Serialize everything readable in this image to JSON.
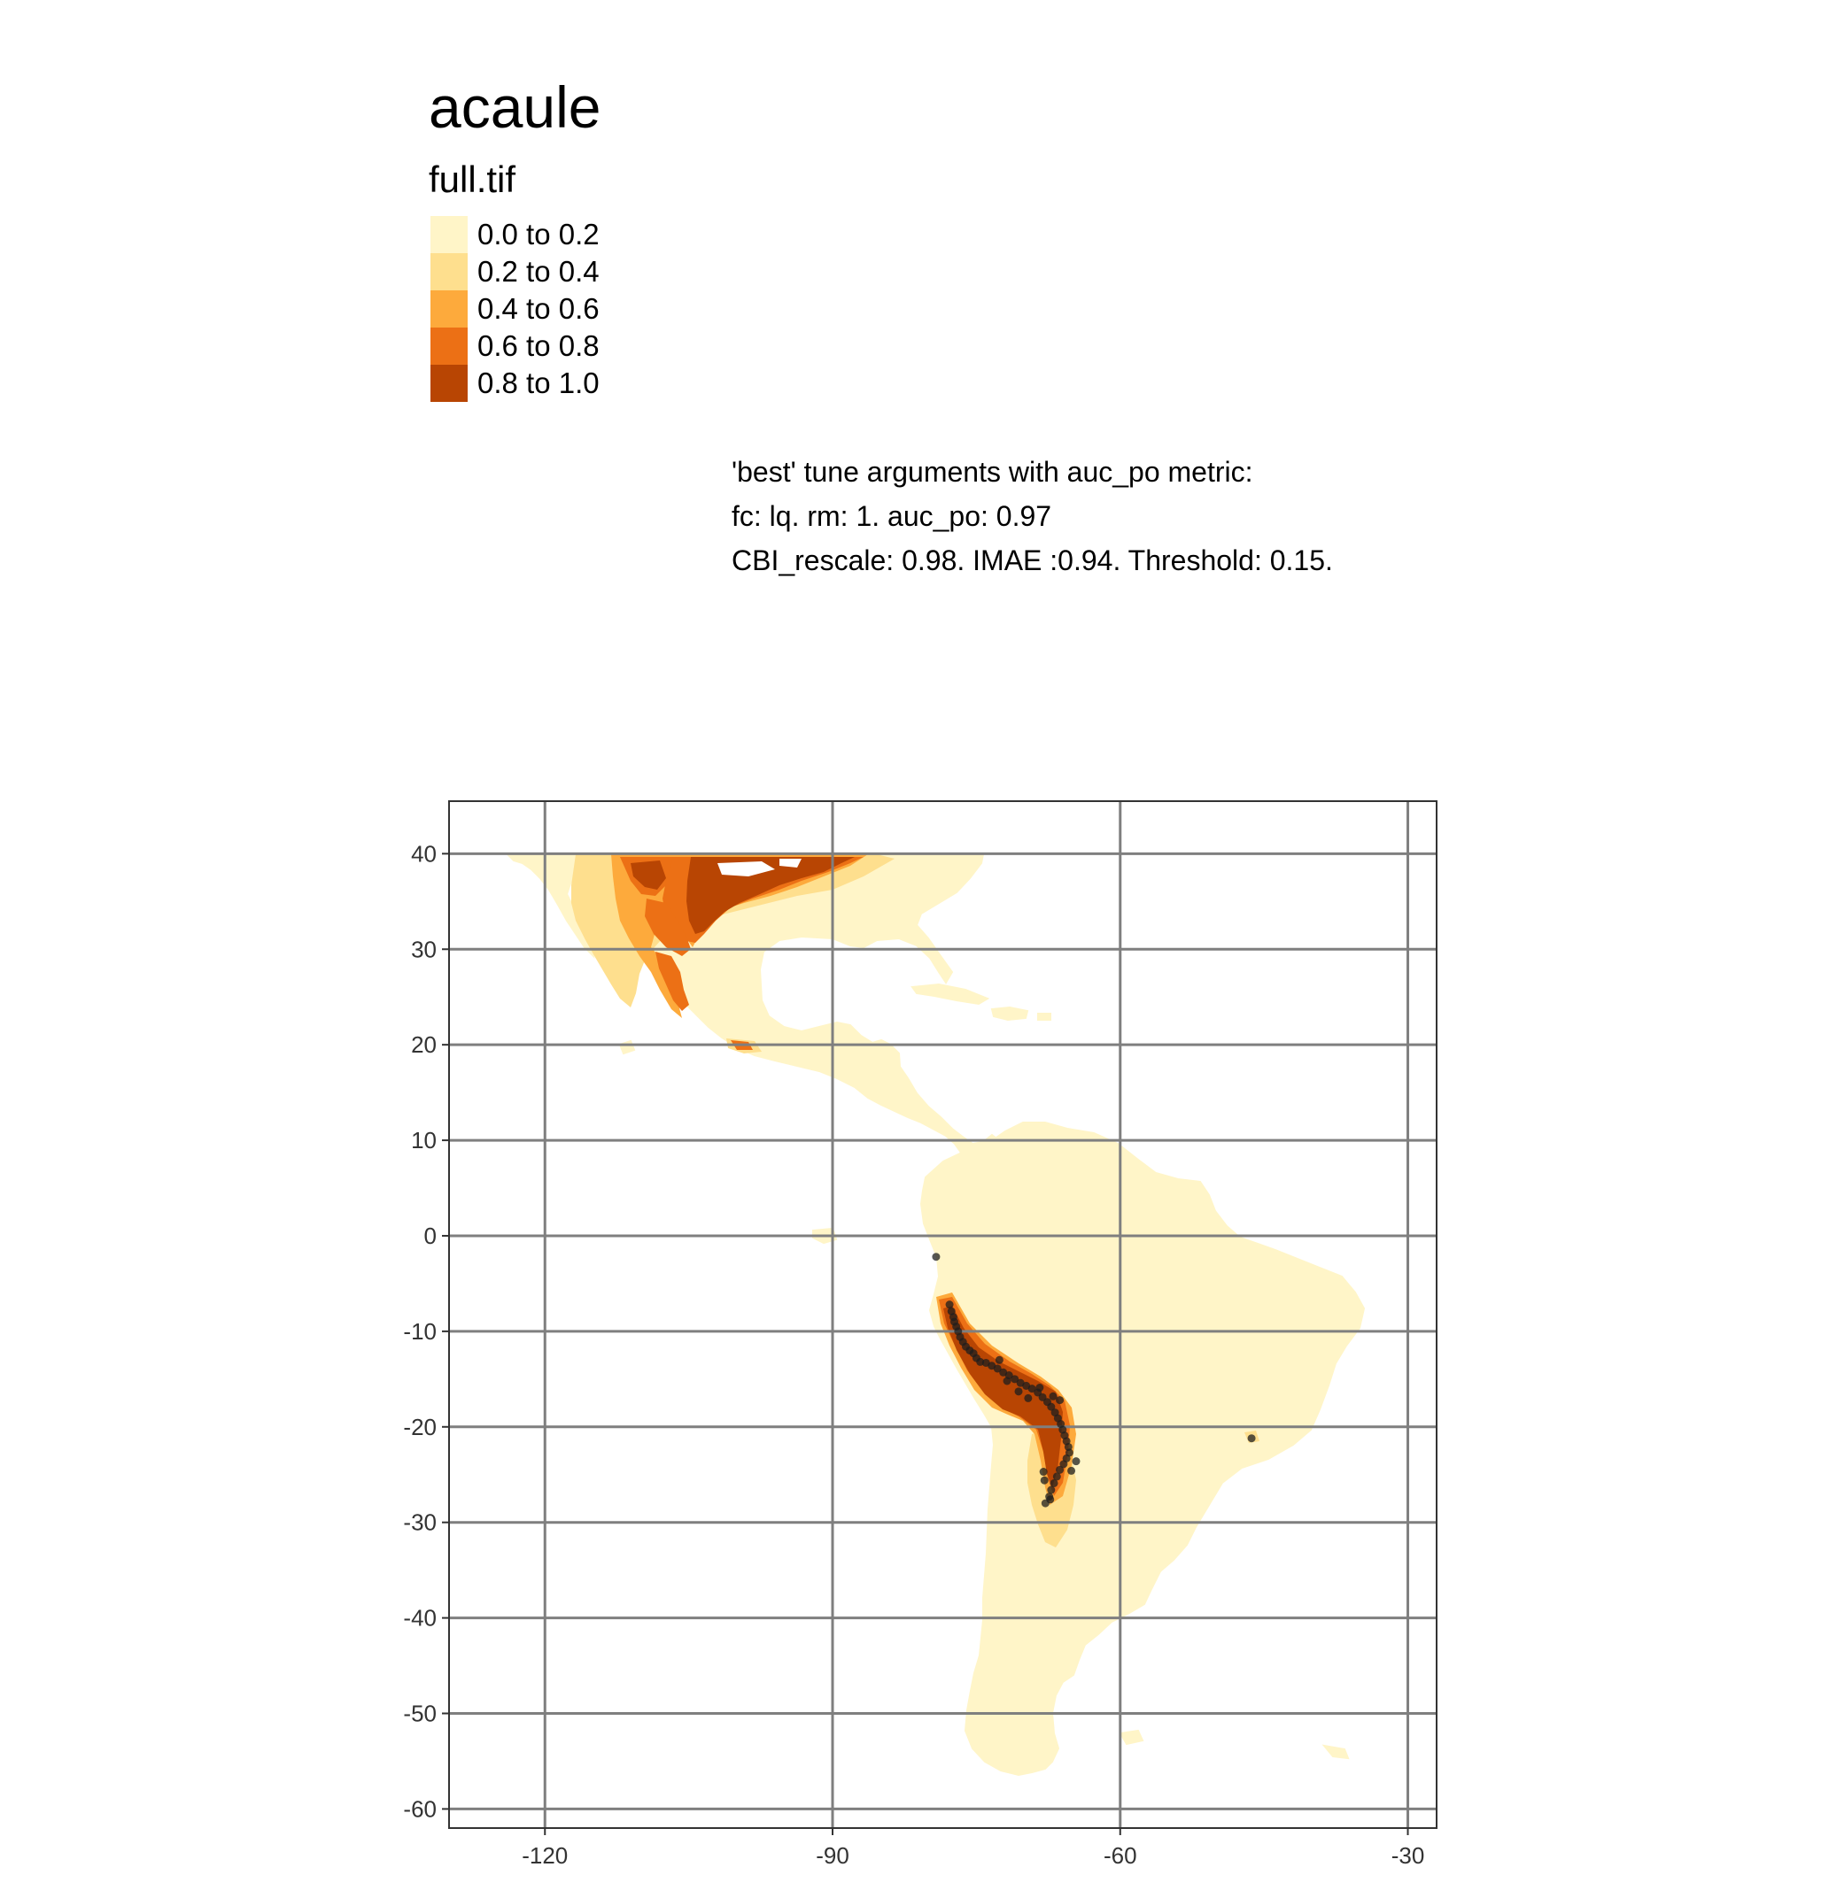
{
  "title": "acaule",
  "legend": {
    "title": "full.tif",
    "items": [
      {
        "label": "0.0 to 0.2",
        "color": "#FFF5C8"
      },
      {
        "label": "0.2 to 0.4",
        "color": "#FEDF8E"
      },
      {
        "label": "0.4 to 0.6",
        "color": "#FDAA3C"
      },
      {
        "label": "0.6 to 0.8",
        "color": "#EC7015"
      },
      {
        "label": "0.8 to 1.0",
        "color": "#B84503"
      }
    ]
  },
  "caption": [
    "'best' tune arguments with auc_po metric:",
    "fc: lq. rm: 1. auc_po: 0.97",
    "CBI_rescale: 0.98. IMAE :0.94. Threshold: 0.15."
  ],
  "map": {
    "x_ticks": [
      -120,
      -90,
      -60,
      -30
    ],
    "y_ticks": [
      40,
      30,
      20,
      10,
      0,
      -10,
      -20,
      -30,
      -40,
      -50,
      -60
    ],
    "xlim": [
      -130,
      -27
    ],
    "ylim": [
      -62,
      45.5
    ],
    "graticule_color": "#7F7F7F",
    "occurrence_color": "#1E1E1E",
    "occurrences": [
      [
        -79.2,
        -2.2
      ],
      [
        -77.8,
        -7.2
      ],
      [
        -77.6,
        -7.9
      ],
      [
        -77.4,
        -8.5
      ],
      [
        -77.3,
        -9.0
      ],
      [
        -77.1,
        -9.5
      ],
      [
        -76.9,
        -10.0
      ],
      [
        -76.7,
        -10.6
      ],
      [
        -76.4,
        -11.1
      ],
      [
        -76.1,
        -11.6
      ],
      [
        -75.7,
        -12.0
      ],
      [
        -75.3,
        -12.3
      ],
      [
        -75.0,
        -12.8
      ],
      [
        -74.6,
        -13.2
      ],
      [
        -74.0,
        -13.3
      ],
      [
        -73.4,
        -13.6
      ],
      [
        -72.8,
        -13.9
      ],
      [
        -72.2,
        -14.3
      ],
      [
        -71.6,
        -14.6
      ],
      [
        -71.0,
        -15.0
      ],
      [
        -70.4,
        -15.4
      ],
      [
        -69.8,
        -15.7
      ],
      [
        -69.2,
        -16.0
      ],
      [
        -68.6,
        -16.4
      ],
      [
        -68.1,
        -16.9
      ],
      [
        -67.6,
        -17.4
      ],
      [
        -67.2,
        -17.9
      ],
      [
        -66.8,
        -18.5
      ],
      [
        -66.5,
        -19.1
      ],
      [
        -66.2,
        -19.7
      ],
      [
        -66.0,
        -20.3
      ],
      [
        -65.8,
        -20.9
      ],
      [
        -65.6,
        -21.5
      ],
      [
        -65.4,
        -22.1
      ],
      [
        -65.3,
        -22.7
      ],
      [
        -65.6,
        -23.3
      ],
      [
        -65.9,
        -23.9
      ],
      [
        -66.3,
        -24.5
      ],
      [
        -66.6,
        -25.2
      ],
      [
        -66.9,
        -25.9
      ],
      [
        -67.2,
        -26.6
      ],
      [
        -67.4,
        -27.3
      ],
      [
        -67.8,
        -28.0
      ],
      [
        -64.6,
        -23.6
      ],
      [
        -65.1,
        -24.6
      ],
      [
        -68.0,
        -24.7
      ],
      [
        -67.9,
        -25.6
      ],
      [
        -67.3,
        -27.6
      ],
      [
        -72.6,
        -13.0
      ],
      [
        -71.8,
        -15.2
      ],
      [
        -70.6,
        -16.3
      ],
      [
        -69.6,
        -17.0
      ],
      [
        -68.4,
        -15.9
      ],
      [
        -67.0,
        -16.8
      ],
      [
        -66.3,
        -17.2
      ],
      [
        -46.3,
        -21.2
      ]
    ]
  }
}
